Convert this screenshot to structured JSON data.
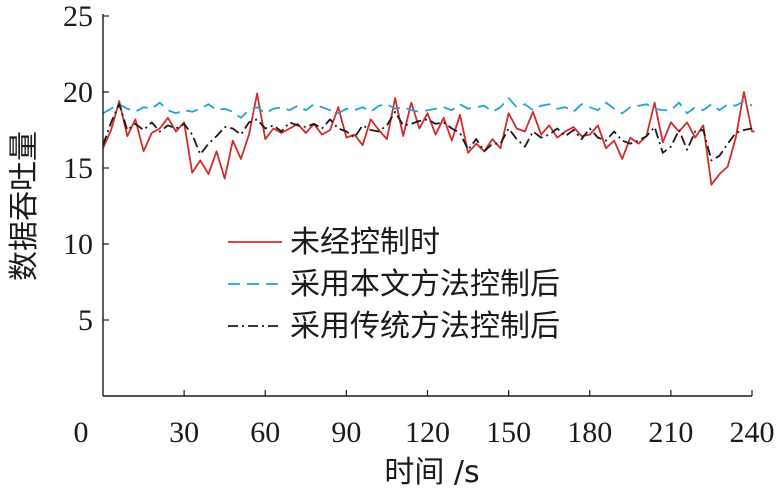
{
  "chart_data": {
    "type": "line",
    "xlabel": "时间 /s",
    "ylabel": "数据吞吐量",
    "xlim": [
      0,
      240
    ],
    "ylim": [
      0,
      25
    ],
    "xticks": [
      0,
      30,
      60,
      90,
      120,
      150,
      180,
      210,
      240
    ],
    "yticks": [
      5,
      10,
      15,
      20,
      25
    ],
    "grid": false,
    "legend_position": "center-left",
    "series": [
      {
        "name": "未经控制时",
        "color": "#d42a2a",
        "dash": "solid",
        "x": [
          0,
          3,
          6,
          9,
          12,
          15,
          18,
          21,
          24,
          27,
          30,
          33,
          36,
          39,
          42,
          45,
          48,
          51,
          54,
          57,
          60,
          63,
          66,
          69,
          72,
          75,
          78,
          81,
          84,
          87,
          90,
          93,
          96,
          99,
          102,
          105,
          108,
          111,
          114,
          117,
          120,
          123,
          126,
          129,
          132,
          135,
          138,
          141,
          144,
          147,
          150,
          153,
          156,
          159,
          162,
          165,
          168,
          171,
          174,
          177,
          180,
          183,
          186,
          189,
          192,
          195,
          198,
          201,
          204,
          207,
          210,
          213,
          216,
          219,
          222,
          225,
          228,
          231,
          234,
          237,
          240,
          241
        ],
        "y": [
          16.3,
          17.5,
          19.4,
          17.1,
          18.2,
          16.1,
          17.3,
          17.6,
          18.3,
          17.4,
          18.0,
          14.7,
          15.5,
          14.6,
          16.1,
          14.3,
          16.8,
          15.6,
          17.2,
          19.9,
          16.9,
          17.6,
          17.3,
          17.6,
          17.9,
          17.3,
          17.9,
          17.2,
          17.5,
          19.0,
          17.0,
          17.2,
          16.5,
          18.2,
          17.5,
          16.9,
          19.6,
          17.1,
          19.3,
          17.6,
          18.6,
          17.2,
          18.3,
          16.8,
          18.5,
          16.0,
          16.6,
          16.1,
          16.9,
          16.3,
          18.6,
          17.6,
          17.4,
          18.7,
          17.2,
          17.8,
          17.0,
          17.4,
          17.7,
          17.1,
          17.2,
          17.8,
          16.3,
          16.8,
          15.6,
          17.0,
          16.6,
          17.1,
          19.3,
          16.7,
          18.0,
          17.4,
          18.0,
          17.0,
          17.8,
          13.9,
          14.6,
          15.1,
          17.0,
          20.0,
          17.4,
          17.4
        ]
      },
      {
        "name": "采用本文方法控制后",
        "color": "#1aa6d6",
        "dash": "12,7",
        "x": [
          0,
          3,
          6,
          9,
          12,
          15,
          18,
          21,
          24,
          27,
          30,
          33,
          36,
          39,
          42,
          45,
          48,
          51,
          54,
          57,
          60,
          63,
          66,
          69,
          72,
          75,
          78,
          81,
          84,
          87,
          90,
          93,
          96,
          99,
          102,
          105,
          108,
          111,
          114,
          117,
          120,
          123,
          126,
          129,
          132,
          135,
          138,
          141,
          144,
          147,
          150,
          153,
          156,
          159,
          162,
          165,
          168,
          171,
          174,
          177,
          180,
          183,
          186,
          189,
          192,
          195,
          198,
          201,
          204,
          207,
          210,
          213,
          216,
          219,
          222,
          225,
          228,
          231,
          234,
          237,
          240
        ],
        "y": [
          18.6,
          18.9,
          19.2,
          18.9,
          18.7,
          19.0,
          18.9,
          19.3,
          18.8,
          18.6,
          18.8,
          18.7,
          18.9,
          19.2,
          18.8,
          18.9,
          18.7,
          18.3,
          18.8,
          19.0,
          18.6,
          18.9,
          19.0,
          18.8,
          19.1,
          18.8,
          19.2,
          19.0,
          18.8,
          18.6,
          18.9,
          18.8,
          19.0,
          18.7,
          19.1,
          19.2,
          18.9,
          19.0,
          18.8,
          18.7,
          18.8,
          18.9,
          19.0,
          18.8,
          19.2,
          18.9,
          19.0,
          19.1,
          18.7,
          19.0,
          19.6,
          19.0,
          19.2,
          18.8,
          19.1,
          19.2,
          18.9,
          19.0,
          18.7,
          19.2,
          19.0,
          18.8,
          19.3,
          18.9,
          18.6,
          19.0,
          19.1,
          19.2,
          18.9,
          18.8,
          18.8,
          19.3,
          18.6,
          19.0,
          18.8,
          19.2,
          18.8,
          19.2,
          19.1,
          19.4,
          19.1
        ]
      },
      {
        "name": "采用传统方法控制后",
        "color": "#1a1a1a",
        "dash": "10,4,2,4",
        "x": [
          0,
          3,
          6,
          9,
          12,
          15,
          18,
          21,
          24,
          27,
          30,
          33,
          36,
          39,
          42,
          45,
          48,
          51,
          54,
          57,
          60,
          63,
          66,
          69,
          72,
          75,
          78,
          81,
          84,
          87,
          90,
          93,
          96,
          99,
          102,
          105,
          108,
          111,
          114,
          117,
          120,
          123,
          126,
          129,
          132,
          135,
          138,
          141,
          144,
          147,
          150,
          153,
          156,
          159,
          162,
          165,
          168,
          171,
          174,
          177,
          180,
          183,
          186,
          189,
          192,
          195,
          198,
          201,
          204,
          207,
          210,
          213,
          216,
          219,
          222,
          225,
          228,
          231,
          234,
          237,
          240
        ],
        "y": [
          16.5,
          18.0,
          19.2,
          17.5,
          17.9,
          17.5,
          18.0,
          17.4,
          17.8,
          17.6,
          17.9,
          17.2,
          15.9,
          16.6,
          17.1,
          17.7,
          17.6,
          17.2,
          18.0,
          18.2,
          17.6,
          17.8,
          17.4,
          18.0,
          17.8,
          17.7,
          17.9,
          17.6,
          18.2,
          17.6,
          17.4,
          17.0,
          17.8,
          17.5,
          17.4,
          17.8,
          18.7,
          17.8,
          17.9,
          18.1,
          18.2,
          17.9,
          18.0,
          17.6,
          17.3,
          16.2,
          16.9,
          16.1,
          16.6,
          16.6,
          17.6,
          16.9,
          16.4,
          17.4,
          17.0,
          17.2,
          17.6,
          17.1,
          17.5,
          16.9,
          17.6,
          17.0,
          16.8,
          17.4,
          16.8,
          16.6,
          16.8,
          17.1,
          17.7,
          16.0,
          16.4,
          17.5,
          16.2,
          17.4,
          17.5,
          15.5,
          15.8,
          16.6,
          17.3,
          17.5,
          17.6
        ]
      }
    ]
  }
}
